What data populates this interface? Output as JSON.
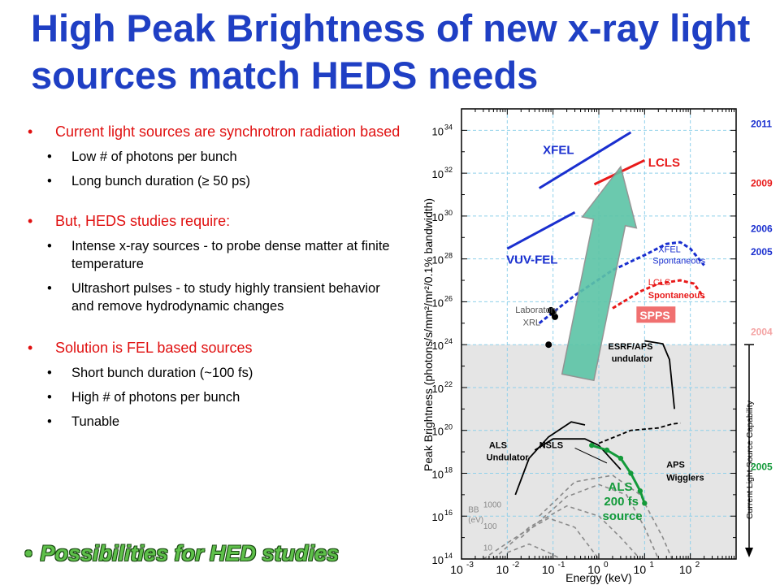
{
  "slide": {
    "title": "High Peak Brightness of new x-ray light sources match HEDS needs",
    "bullets": [
      {
        "text": "Current light sources are synchrotron radiation based",
        "sub": [
          "Low # of photons per bunch",
          "Long bunch duration (≥ 50 ps)"
        ]
      },
      {
        "text": "But, HEDS studies require:",
        "sub": [
          "Intense x-ray sources - to probe dense matter at finite temperature",
          "Ultrashort  pulses - to study highly transient behavior and remove hydrodynamic changes"
        ]
      },
      {
        "text": "Solution is FEL based sources",
        "sub": [
          "Short bunch duration (~100 fs)",
          "High # of photons per bunch",
          "Tunable"
        ]
      }
    ],
    "highlight": "Possibilities for HED studies"
  },
  "colors": {
    "title": "#1f3fc4",
    "bullet": "#e01010",
    "fel_blue": "#1a2fcf",
    "lcls_red": "#e81a1a",
    "als_green": "#139a3a",
    "arrow": "#5cc4a6",
    "sr_region": "#e5e5e5"
  },
  "chart_data": {
    "type": "line",
    "xlabel": "Energy (keV)",
    "ylabel": "Peak Brightness (photons/s/mm²/mr²/0.1% bandwidth)",
    "x_scale": "log",
    "y_scale": "log",
    "xlim": [
      0.001,
      1000
    ],
    "ylim": [
      100000000000000.0,
      1e+35
    ],
    "x_ticks": [
      {
        "v": -3,
        "label": "10"
      },
      {
        "v": -2,
        "label": "10"
      },
      {
        "v": -1,
        "label": "10"
      },
      {
        "v": 0,
        "label": "10"
      },
      {
        "v": 1,
        "label": "10"
      },
      {
        "v": 2,
        "label": "10"
      }
    ],
    "x_tick_exps": [
      "-3",
      "-2",
      "-1",
      "0",
      "1",
      "2"
    ],
    "y_ticks": [
      {
        "v": 14
      },
      {
        "v": 16
      },
      {
        "v": 18
      },
      {
        "v": 20
      },
      {
        "v": 22
      },
      {
        "v": 24
      },
      {
        "v": 26
      },
      {
        "v": 28
      },
      {
        "v": 30
      },
      {
        "v": 32
      },
      {
        "v": 34
      }
    ],
    "y_tick_base": "10",
    "y_tick_exps": [
      "14",
      "16",
      "18",
      "20",
      "22",
      "24",
      "26",
      "28",
      "30",
      "32",
      "34"
    ],
    "grid": true,
    "shaded_region": {
      "label": "Current Light Source Capability",
      "y_max": 1e+24
    },
    "series": [
      {
        "name": "XFEL",
        "style": "solid",
        "color": "#1a2fcf",
        "year": "2011",
        "points": [
          [
            0.05,
            2e+31
          ],
          [
            5,
            8e+33
          ]
        ]
      },
      {
        "name": "LCLS",
        "style": "solid",
        "color": "#e81a1a",
        "year": "2009",
        "points": [
          [
            0.8,
            3e+31
          ],
          [
            10,
            4e+32
          ]
        ]
      },
      {
        "name": "VUV-FEL",
        "style": "solid",
        "color": "#1a2fcf",
        "year": "2006",
        "points": [
          [
            0.01,
            3e+28
          ],
          [
            0.3,
            1.5e+30
          ]
        ]
      },
      {
        "name": "XFEL Spontaneous",
        "style": "dashed",
        "color": "#1a2fcf",
        "year": "2005",
        "points": [
          [
            0.05,
            1e+25
          ],
          [
            0.3,
            2e+26
          ],
          [
            2,
            3e+27
          ],
          [
            10,
            1.5e+28
          ],
          [
            30,
            5e+28
          ],
          [
            60,
            6e+28
          ],
          [
            100,
            3e+28
          ],
          [
            200,
            5e+27
          ]
        ]
      },
      {
        "name": "LCLS Spontaneous",
        "style": "dashed",
        "color": "#e81a1a",
        "year": "",
        "points": [
          [
            2,
            5e+25
          ],
          [
            8,
            3e+26
          ],
          [
            20,
            7e+26
          ],
          [
            60,
            1e+27
          ],
          [
            120,
            7e+26
          ],
          [
            200,
            1.5e+26
          ]
        ]
      },
      {
        "name": "ESRF/APS undulator",
        "style": "solid",
        "color": "#000000",
        "year": "",
        "points": [
          [
            10,
            1.5e+24
          ],
          [
            25,
            1.1e+24
          ],
          [
            35,
            2e+23
          ],
          [
            45,
            1e+21
          ]
        ]
      },
      {
        "name": "ALS Undulator",
        "style": "solid",
        "color": "#000000",
        "year": "",
        "points": [
          [
            0.015,
            1e+17
          ],
          [
            0.03,
            5e+18
          ],
          [
            0.08,
            5e+19
          ],
          [
            0.25,
            2.5e+20
          ],
          [
            0.5,
            1.8e+20
          ]
        ]
      },
      {
        "name": "NSLS",
        "style": "solid",
        "color": "#000000",
        "year": "",
        "points": [
          [
            0.04,
            1.2e+19
          ],
          [
            0.1,
            4e+19
          ],
          [
            0.5,
            4e+19
          ],
          [
            1,
            2e+19
          ],
          [
            3,
            1.5e+18
          ]
        ]
      },
      {
        "name": "APS Wigglers",
        "style": "dashed",
        "color": "#000000",
        "year": "",
        "points": [
          [
            1,
            2.5e+19
          ],
          [
            5,
            1e+20
          ],
          [
            20,
            1.3e+20
          ],
          [
            40,
            2e+20
          ],
          [
            60,
            2.2e+20
          ]
        ]
      },
      {
        "name": "ALS 200 fs source",
        "style": "dots",
        "color": "#139a3a",
        "year": "2005",
        "points": [
          [
            0.7,
            2e+19
          ],
          [
            1.5,
            1.2e+19
          ],
          [
            3,
            5e+18
          ],
          [
            5,
            1e+18
          ],
          [
            8,
            1.5e+17
          ],
          [
            10,
            4e+16
          ]
        ]
      },
      {
        "name": "Laboratory XRL",
        "style": "points",
        "color": "#000000",
        "year": "",
        "points": [
          [
            0.09,
            4e+25
          ],
          [
            0.1,
            3e+25
          ],
          [
            0.11,
            2e+25
          ],
          [
            0.08,
            1e+24
          ]
        ]
      },
      {
        "name": "SPPS",
        "style": "label",
        "color": "#e81a1a",
        "year": "2004",
        "points": [
          [
            10,
            3e+24
          ]
        ]
      }
    ],
    "blackbody": {
      "label": "BB (eV)",
      "temps": [
        "1000",
        "100",
        "10"
      ]
    },
    "annotations": [
      "XFEL",
      "LCLS",
      "VUV-FEL",
      "XFEL Spontaneous",
      "LCLS Spontaneous",
      "Laboratory XRL",
      "SPPS",
      "ESRF/APS undulator",
      "ALS Undulator",
      "NSLS",
      "APS Wigglers",
      "ALS 200 fs source"
    ],
    "years": [
      {
        "label": "2011",
        "color": "#1a2fcf"
      },
      {
        "label": "2009",
        "color": "#e81a1a"
      },
      {
        "label": "2006",
        "color": "#1a2fcf"
      },
      {
        "label": "2005",
        "color": "#1a2fcf"
      },
      {
        "label": "2004",
        "color": "#f4a3a3"
      },
      {
        "label": "2005",
        "color": "#139a3a"
      }
    ],
    "labels": {
      "xfel": "XFEL",
      "lcls": "LCLS",
      "vuv": "VUV-FEL",
      "xfel_sp1": "XFEL",
      "xfel_sp2": "Spontaneous",
      "lcls_sp1": "LCLS",
      "lcls_sp2": "Spontaneous",
      "lab1": "Laboratory",
      "lab2": "XRL",
      "spps": "SPPS",
      "esrf1": "ESRF/APS",
      "esrf2": "undulator",
      "als1": "ALS",
      "als2": "Undulator",
      "nsls": "NSLS",
      "aps1": "APS",
      "aps2": "Wigglers",
      "fs1": "ALS",
      "fs2": "200 fs",
      "fs3": "source",
      "bb1": "BB",
      "bb2": "(eV)",
      "capability": "Current Light Source Capability"
    }
  }
}
